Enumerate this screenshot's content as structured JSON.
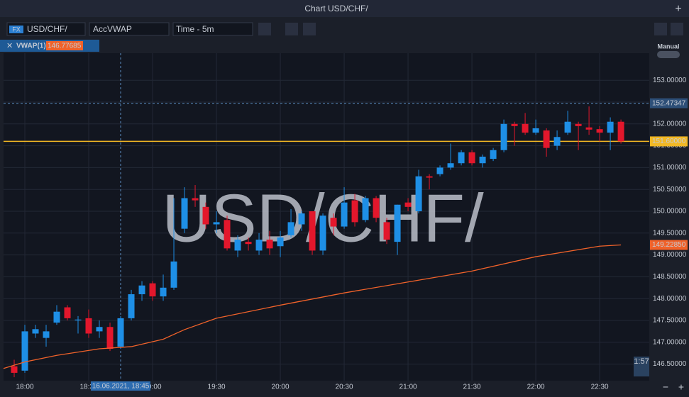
{
  "header": {
    "title": "Chart USD/CHF/"
  },
  "toolbar": {
    "badge": "FX",
    "symbol": "USD/CHF/",
    "template": "AccVWAP",
    "timeframe": "Time - 5m"
  },
  "indicator": {
    "name": "VWAP(1)",
    "value": "146.77685"
  },
  "panel": {
    "mode": "Manual",
    "countdown": "1:57"
  },
  "chart_data": {
    "type": "candlestick",
    "watermark": "USD/CHF/",
    "up_color": "#1e8fe6",
    "down_color": "#e3172c",
    "x": [
      -5,
      0,
      5,
      10,
      15,
      20,
      25,
      30,
      35,
      40,
      45,
      50,
      55,
      60,
      65,
      70,
      75,
      80,
      85,
      90,
      95,
      100,
      105,
      110,
      115,
      120,
      125,
      130,
      135,
      140,
      145,
      150,
      155,
      160,
      165,
      170,
      175,
      180,
      185,
      190,
      195,
      200,
      205,
      210,
      215,
      220,
      225,
      230,
      235,
      240,
      245,
      250,
      255,
      260,
      265,
      270,
      275,
      280
    ],
    "open": [
      146.45,
      146.35,
      147.2,
      147.1,
      147.45,
      147.8,
      147.5,
      147.55,
      147.25,
      147.35,
      146.9,
      147.55,
      148.1,
      148.35,
      148.05,
      148.25,
      149.6,
      150.3,
      150.1,
      149.7,
      149.8,
      149.1,
      149.3,
      149.1,
      149.35,
      149.2,
      149.45,
      149.7,
      150,
      149.1,
      149.85,
      149.65,
      150.25,
      149.8,
      150.3,
      149.75,
      149.3,
      150.2,
      150,
      150.8,
      150.85,
      151,
      151.1,
      151.35,
      151.1,
      151.2,
      151.4,
      152,
      152,
      151.8,
      151.85,
      151.5,
      151.8,
      152,
      151.92,
      151.88,
      151.8,
      152.05
    ],
    "high": [
      146.6,
      147.4,
      147.4,
      147.4,
      147.85,
      147.85,
      147.6,
      147.75,
      147.5,
      147.45,
      147.6,
      148.2,
      148.4,
      148.4,
      148.55,
      150.3,
      150.55,
      150.6,
      150.2,
      150,
      149.9,
      149.45,
      149.4,
      149.5,
      149.55,
      149.55,
      150.05,
      150,
      150,
      149.95,
      149.95,
      150.55,
      150.4,
      150.35,
      150.35,
      149.85,
      150.15,
      150.3,
      150.95,
      150.85,
      151.05,
      151.55,
      151.4,
      151.4,
      151.3,
      151.45,
      152.1,
      152.05,
      152.25,
      152.1,
      151.9,
      151.85,
      152.3,
      152.05,
      152.4,
      151.95,
      152.15,
      152.1
    ],
    "low": [
      146.2,
      146.3,
      147.1,
      146.9,
      147.4,
      147.5,
      147.2,
      147.1,
      147.1,
      146.8,
      146.85,
      147.5,
      147.95,
      147.95,
      147.95,
      148.2,
      149.5,
      150.1,
      149.6,
      149.5,
      149.1,
      148.95,
      149.1,
      149,
      149,
      148.95,
      149.4,
      149.55,
      149,
      149,
      149.45,
      149.6,
      149.65,
      149.75,
      149.75,
      149.25,
      149,
      150,
      149.95,
      150.5,
      150.8,
      150.95,
      151.05,
      151.05,
      151,
      151.15,
      151.35,
      151.5,
      151.75,
      151.75,
      151.25,
      151.4,
      151.75,
      151.4,
      151.75,
      151.6,
      151.4,
      151.55
    ],
    "close": [
      146.3,
      147.25,
      147.3,
      147.25,
      147.7,
      147.55,
      147.52,
      147.2,
      147.35,
      146.85,
      147.55,
      148.1,
      148.3,
      148.05,
      148.25,
      148.85,
      150.3,
      150.25,
      149.7,
      149.75,
      149.15,
      149.35,
      149.25,
      149.35,
      149.15,
      149.4,
      149.75,
      149.95,
      149.1,
      149.9,
      149.65,
      150.2,
      149.75,
      150.3,
      149.85,
      149.35,
      150.15,
      150.1,
      150.8,
      150.77,
      151,
      151.1,
      151.35,
      151.1,
      151.25,
      151.4,
      152,
      151.95,
      151.8,
      151.9,
      151.45,
      151.7,
      152.05,
      151.95,
      151.87,
      151.8,
      152.05,
      151.6
    ],
    "vwap": {
      "name": "VWAP(1)",
      "color": "#f0622a",
      "x": [
        -10,
        0,
        15,
        35,
        50,
        65,
        75,
        90,
        120,
        150,
        180,
        210,
        240,
        270,
        280
      ],
      "values": [
        146.4,
        146.55,
        146.7,
        146.85,
        146.9,
        147.07,
        147.29,
        147.55,
        147.85,
        148.13,
        148.38,
        148.63,
        148.96,
        149.2,
        149.2285
      ]
    },
    "xlim": [
      -10,
      293.3
    ],
    "ylim": [
      146.12,
      153.62
    ],
    "xticks": [
      {
        "value": 0,
        "label": "18:00"
      },
      {
        "value": 30,
        "label": "18:30"
      },
      {
        "value": 60,
        "label": "19:00"
      },
      {
        "value": 90,
        "label": "19:30"
      },
      {
        "value": 120,
        "label": "20:00"
      },
      {
        "value": 150,
        "label": "20:30"
      },
      {
        "value": 180,
        "label": "21:00"
      },
      {
        "value": 210,
        "label": "21:30"
      },
      {
        "value": 240,
        "label": "22:00"
      },
      {
        "value": 270,
        "label": "22:30"
      }
    ],
    "yticks": [
      {
        "value": 146.5,
        "label": "146.50000"
      },
      {
        "value": 147,
        "label": "147.00000"
      },
      {
        "value": 147.5,
        "label": "147.50000"
      },
      {
        "value": 148,
        "label": "148.00000"
      },
      {
        "value": 148.5,
        "label": "148.50000"
      },
      {
        "value": 149,
        "label": "149.00000"
      },
      {
        "value": 149.5,
        "label": "149.50000"
      },
      {
        "value": 150,
        "label": "150.00000"
      },
      {
        "value": 150.5,
        "label": "150.50000"
      },
      {
        "value": 151,
        "label": "151.00000"
      },
      {
        "value": 151.5,
        "label": "151.50000"
      },
      {
        "value": 152,
        "label": "152.00000"
      },
      {
        "value": 152.5,
        "label": "152.50000"
      },
      {
        "value": 153,
        "label": "153.00000"
      }
    ],
    "grid": true,
    "crosshair": {
      "x": {
        "value": 45,
        "label": "16.06.2021, 18:45"
      },
      "y": {
        "value": 152.47347,
        "label": "152.47347"
      }
    },
    "level": {
      "value": 151.6,
      "label": "151.60000",
      "color": "#f2b824"
    },
    "vwap_label": {
      "value": 149.2285,
      "label": "149.22850"
    }
  }
}
